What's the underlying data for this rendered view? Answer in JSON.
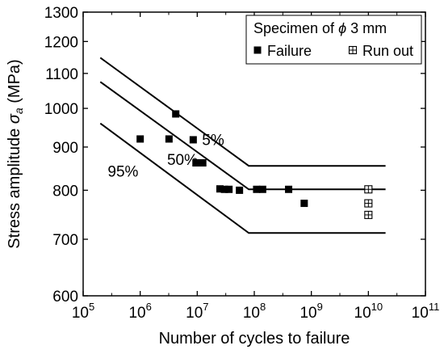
{
  "chart_data": {
    "type": "scatter",
    "xlabel": "Number of cycles to failure",
    "ylabel": "Stress amplitude",
    "ylabel_symbol": "σ",
    "ylabel_subscript": "a",
    "ylabel_unit": "(MPa)",
    "xscale": "log",
    "yscale": "log",
    "xlim": [
      100000,
      100000000000
    ],
    "ylim": [
      600,
      1300
    ],
    "x_ticks": [
      {
        "base": "10",
        "exp": "5",
        "value": 100000
      },
      {
        "base": "10",
        "exp": "6",
        "value": 1000000
      },
      {
        "base": "10",
        "exp": "7",
        "value": 10000000
      },
      {
        "base": "10",
        "exp": "8",
        "value": 100000000
      },
      {
        "base": "10",
        "exp": "9",
        "value": 1000000000
      },
      {
        "base": "10",
        "exp": "10",
        "value": 10000000000
      },
      {
        "base": "10",
        "exp": "11",
        "value": 100000000000
      }
    ],
    "y_ticks": [
      {
        "label": "600",
        "value": 600
      },
      {
        "label": "700",
        "value": 700
      },
      {
        "label": "800",
        "value": 800
      },
      {
        "label": "900",
        "value": 900
      },
      {
        "label": "1000",
        "value": 1000
      },
      {
        "label": "1100",
        "value": 1100
      },
      {
        "label": "1200",
        "value": 1200
      },
      {
        "label": "1300",
        "value": 1300
      }
    ],
    "legend": {
      "title_prefix": "Specimen of ",
      "title_symbol": "ϕ",
      "title_suffix": " 3 mm",
      "position": "top-right"
    },
    "series": [
      {
        "name": "Failure",
        "marker": "filled-square",
        "points": [
          {
            "x": 1000000,
            "y": 920
          },
          {
            "x": 3200000,
            "y": 920
          },
          {
            "x": 4200000,
            "y": 985
          },
          {
            "x": 8500000,
            "y": 918
          },
          {
            "x": 9500000,
            "y": 862
          },
          {
            "x": 12500000,
            "y": 862
          },
          {
            "x": 25000000,
            "y": 803
          },
          {
            "x": 30000000,
            "y": 802
          },
          {
            "x": 36000000,
            "y": 802
          },
          {
            "x": 55000000,
            "y": 800
          },
          {
            "x": 110000000,
            "y": 802
          },
          {
            "x": 140000000,
            "y": 802
          },
          {
            "x": 400000000,
            "y": 802
          },
          {
            "x": 750000000,
            "y": 772
          }
        ]
      },
      {
        "name": "Run out",
        "marker": "crossed-square",
        "points": [
          {
            "x": 10000000000,
            "y": 802
          },
          {
            "x": 10000000000,
            "y": 772
          },
          {
            "x": 10000000000,
            "y": 748
          }
        ]
      }
    ],
    "curves": [
      {
        "label": "5%",
        "points": [
          [
            200000,
            1148
          ],
          [
            80000000,
            855
          ],
          [
            20000000000,
            855
          ]
        ],
        "label_at": [
          19000000,
          905
        ]
      },
      {
        "label": "50%",
        "points": [
          [
            200000,
            1075
          ],
          [
            80000000,
            802
          ],
          [
            20000000000,
            802
          ]
        ],
        "label_at": [
          5500000,
          857
        ]
      },
      {
        "label": "95%",
        "points": [
          [
            200000,
            960
          ],
          [
            80000000,
            712
          ],
          [
            20000000000,
            712
          ]
        ],
        "label_at": [
          500000,
          830
        ]
      }
    ]
  }
}
